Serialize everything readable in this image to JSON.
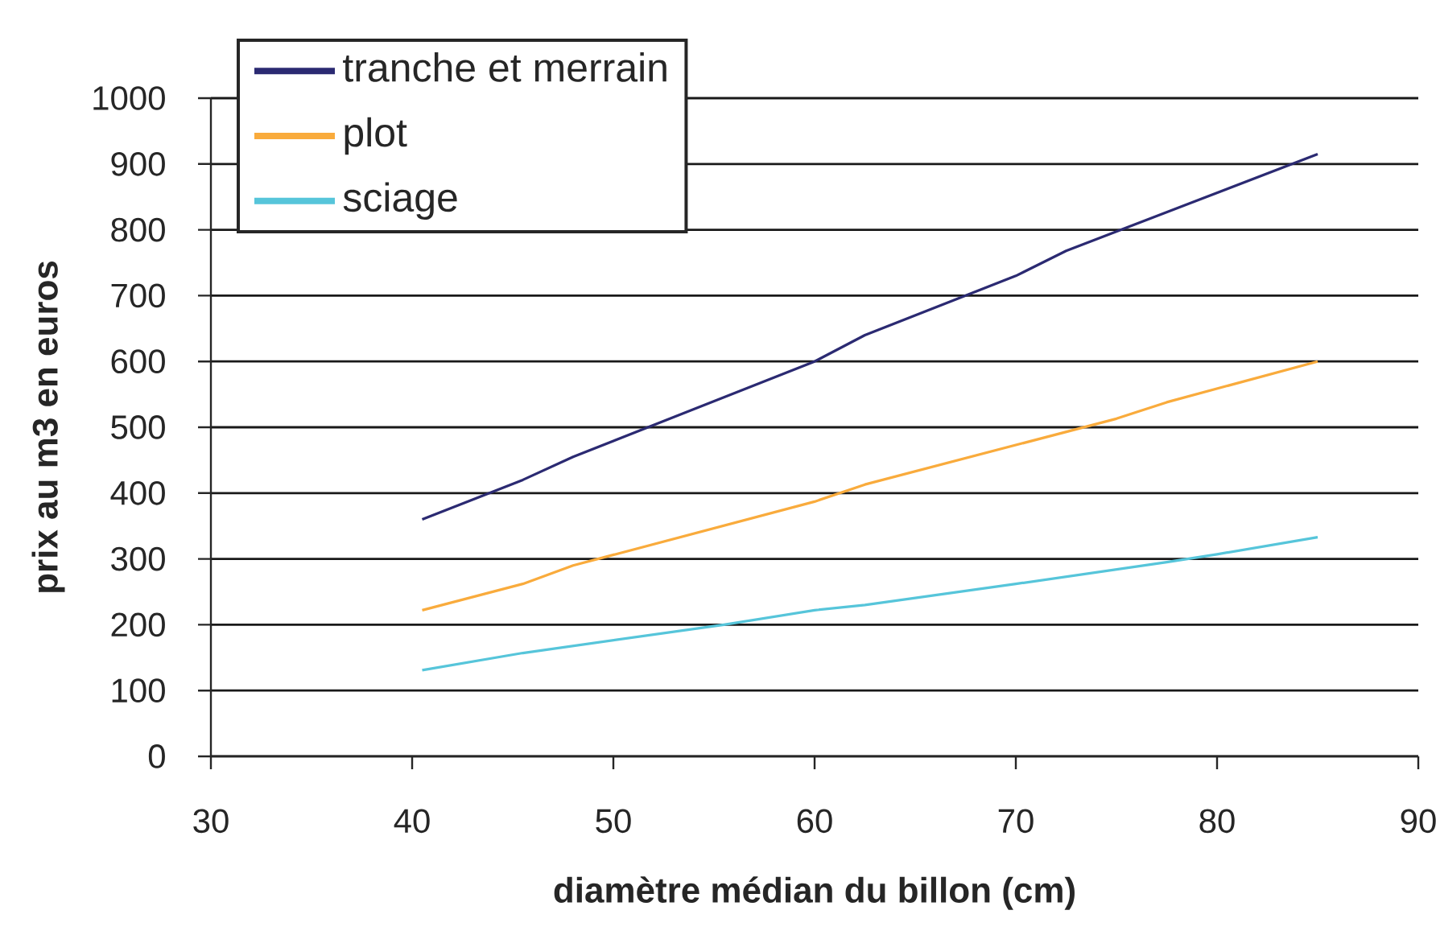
{
  "chart_data": {
    "type": "line",
    "xlabel": "diamètre médian du billon (cm)",
    "ylabel": "prix au m3 en euros",
    "xlim": [
      30,
      90
    ],
    "ylim": [
      0,
      1000
    ],
    "xticks": [
      30,
      40,
      50,
      60,
      70,
      80,
      90
    ],
    "yticks": [
      0,
      100,
      200,
      300,
      400,
      500,
      600,
      700,
      800,
      900,
      1000
    ],
    "grid": "y",
    "legend": "top left",
    "marker": "none",
    "line_style": "solid",
    "series": [
      {
        "name": "tranche et merrain",
        "color": "#2b2a72",
        "x": [
          40.5,
          45.5,
          48,
          60,
          62.5,
          70,
          72.5,
          85
        ],
        "values": [
          360,
          420,
          455,
          600,
          640,
          730,
          768,
          915
        ]
      },
      {
        "name": "plot",
        "color": "#f9ab3c",
        "x": [
          40.5,
          45.5,
          48,
          60,
          62.5,
          75,
          77.5,
          85
        ],
        "values": [
          222,
          262,
          290,
          387,
          413,
          513,
          538,
          600
        ]
      },
      {
        "name": "sciage",
        "color": "#56c5da",
        "x": [
          40.5,
          45.5,
          55.5,
          60,
          62.5,
          70,
          77.5,
          80,
          85
        ],
        "values": [
          131,
          157,
          200,
          222,
          230,
          262,
          295,
          307,
          333
        ]
      }
    ]
  }
}
